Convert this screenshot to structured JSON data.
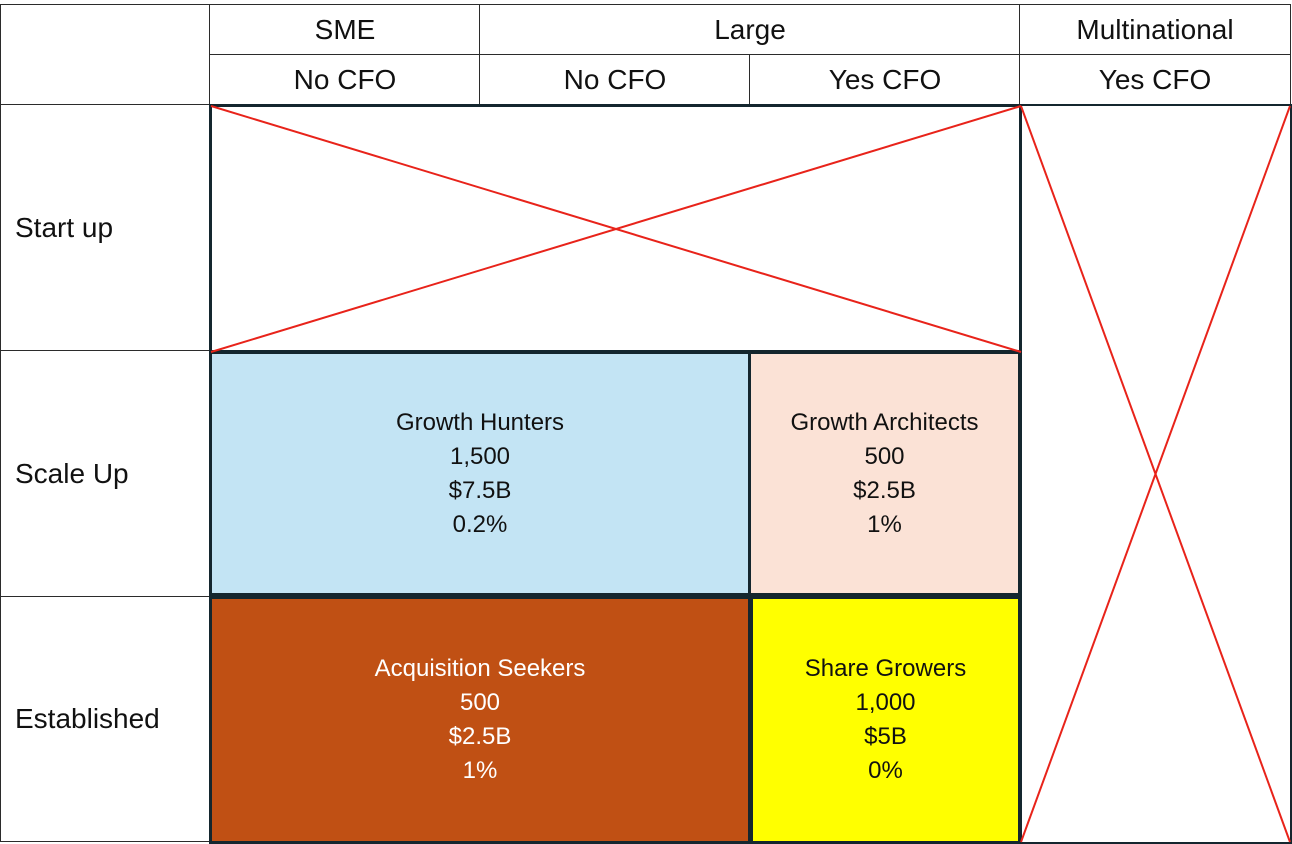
{
  "header": {
    "groups": [
      {
        "id": "sme",
        "label": "SME"
      },
      {
        "id": "large",
        "label": "Large"
      },
      {
        "id": "multinational",
        "label": "Multinational"
      }
    ],
    "subheaders": [
      "No CFO",
      "No CFO",
      "Yes CFO",
      "Yes CFO"
    ]
  },
  "rows": [
    "Start up",
    "Scale Up",
    "Established"
  ],
  "segments": {
    "growth_hunters": {
      "name": "Growth Hunters",
      "count": "1,500",
      "value": "$7.5B",
      "share": "0.2%",
      "color": "#c3e4f4"
    },
    "growth_architects": {
      "name": "Growth Architects",
      "count": "500",
      "value": "$2.5B",
      "share": "1%",
      "color": "#fbe2d6"
    },
    "acquisition_seekers": {
      "name": "Acquisition Seekers",
      "count": "500",
      "value": "$2.5B",
      "share": "1%",
      "color": "#c05014"
    },
    "share_growers": {
      "name": "Share Growers",
      "count": "1,000",
      "value": "$5B",
      "share": "0%",
      "color": "#ffff00"
    }
  },
  "colors": {
    "cross_lines": "#e8231a",
    "acquisition_text": "#ffffff",
    "borders": "#14262e"
  }
}
